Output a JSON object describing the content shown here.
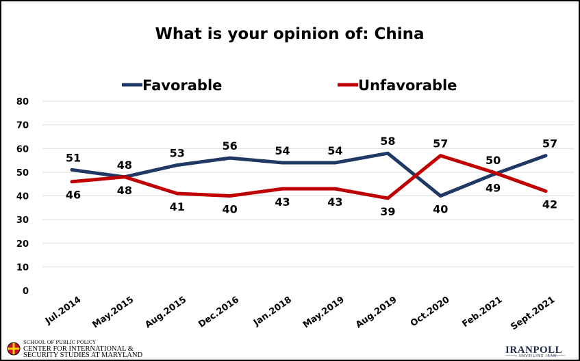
{
  "chart_data": {
    "type": "line",
    "title": "What is your opinion of: China",
    "categories": [
      "Jul.2014",
      "May.2015",
      "Aug.2015",
      "Dec.2016",
      "Jan.2018",
      "May.2019",
      "Aug.2019",
      "Oct.2020",
      "Feb.2021",
      "Sept.2021"
    ],
    "series": [
      {
        "name": "Favorable",
        "color": "#1f3864",
        "values": [
          51,
          48,
          53,
          56,
          54,
          54,
          58,
          40,
          49,
          57
        ]
      },
      {
        "name": "Unfavorable",
        "color": "#c00000",
        "values": [
          46,
          48,
          41,
          40,
          43,
          43,
          39,
          57,
          50,
          42
        ]
      }
    ],
    "ylim": [
      0,
      80
    ],
    "yticks": [
      "0",
      "10",
      "20",
      "30",
      "40",
      "50",
      "60",
      "70",
      "80"
    ],
    "grid": true,
    "legend": "top"
  },
  "logos": {
    "umd_line1": "SCHOOL OF PUBLIC POLICY",
    "umd_line2": "CENTER FOR INTERNATIONAL &",
    "umd_line3": "SECURITY STUDIES AT MARYLAND",
    "iranpoll": "IRANPOLL",
    "iranpoll_tagline": "UNVEILING IRAN"
  }
}
